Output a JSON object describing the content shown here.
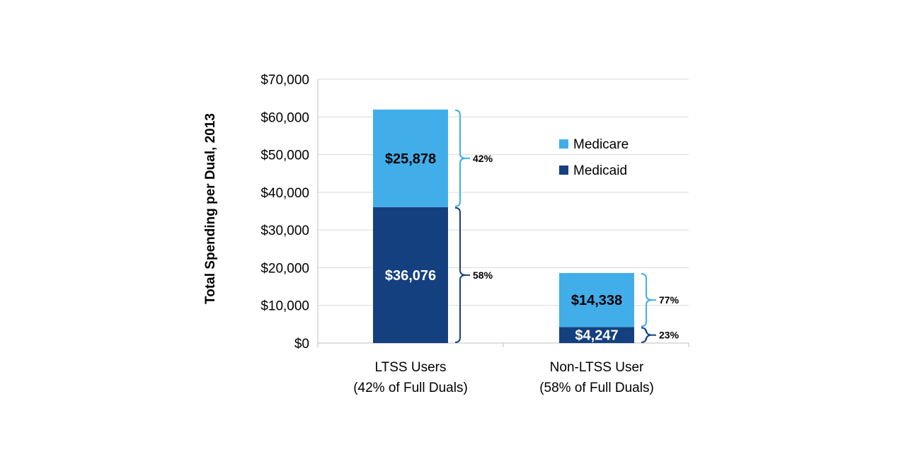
{
  "chart_data": {
    "type": "bar",
    "stacked": true,
    "ylabel": "Total Spending per Dual, 2013",
    "xlabel": "",
    "ylim": [
      0,
      70000
    ],
    "yticks": [
      0,
      10000,
      20000,
      30000,
      40000,
      50000,
      60000,
      70000
    ],
    "ytick_labels": [
      "$0",
      "$10,000",
      "$20,000",
      "$30,000",
      "$40,000",
      "$50,000",
      "$60,000",
      "$70,000"
    ],
    "grid": true,
    "legend": {
      "position": "right",
      "entries": [
        "Medicare",
        "Medicaid"
      ]
    },
    "categories": [
      {
        "line1": "LTSS Users",
        "line2": "(42% of Full Duals)"
      },
      {
        "line1": "Non-LTSS User",
        "line2": "(58% of Full Duals)"
      }
    ],
    "series": [
      {
        "name": "Medicaid",
        "color": "#14407f",
        "label_color": "#ffffff",
        "values": [
          36076,
          4247
        ],
        "labels": [
          "$36,076",
          "$4,247"
        ],
        "shares": [
          "58%",
          "23%"
        ]
      },
      {
        "name": "Medicare",
        "color": "#41aeea",
        "label_color": "#000000",
        "values": [
          25878,
          14338
        ],
        "labels": [
          "$25,878",
          "$14,338"
        ],
        "shares": [
          "42%",
          "77%"
        ]
      }
    ]
  }
}
